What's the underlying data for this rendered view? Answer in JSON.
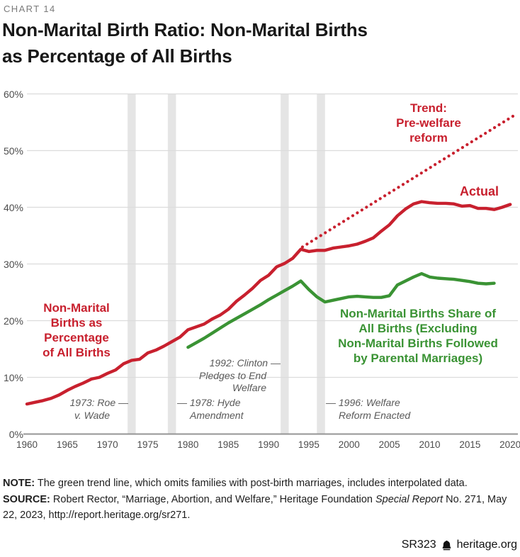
{
  "chart_label": "CHART 14",
  "title": {
    "lines": [
      "Non-Marital Birth Ratio: Non-Marital Births",
      "as Percentage of All Births"
    ]
  },
  "colors": {
    "red": "#C8202E",
    "green": "#3A9334",
    "grid": "#DCDCDC",
    "axis": "#949494",
    "band": "#E5E5E5",
    "annotation": "#595959",
    "tick": "#4D4D4D"
  },
  "chart_data": {
    "type": "line",
    "title": "Non-Marital Birth Ratio: Non-Marital Births as Percentage of All Births",
    "xlabel": "",
    "ylabel": "",
    "x_axis": {
      "range": [
        1960,
        2021
      ],
      "tick_labels": [
        1960,
        1965,
        1970,
        1975,
        1980,
        1985,
        1990,
        1995,
        2000,
        2005,
        2010,
        2015,
        2020
      ]
    },
    "y_axis": {
      "range": [
        0,
        60
      ],
      "unit": "percent",
      "tick_labels": [
        "0%",
        "10%",
        "20%",
        "30%",
        "40%",
        "50%",
        "60%"
      ]
    },
    "grid": "horizontal-only",
    "legend_position": "inline-labels",
    "series": [
      {
        "id": "actual",
        "name": "Actual",
        "style": "solid",
        "color_key": "red",
        "points": [
          [
            1960,
            5.3
          ],
          [
            1961,
            5.6
          ],
          [
            1962,
            5.9
          ],
          [
            1963,
            6.3
          ],
          [
            1964,
            6.9
          ],
          [
            1965,
            7.7
          ],
          [
            1966,
            8.4
          ],
          [
            1967,
            9.0
          ],
          [
            1968,
            9.7
          ],
          [
            1969,
            10.0
          ],
          [
            1970,
            10.7
          ],
          [
            1971,
            11.3
          ],
          [
            1972,
            12.4
          ],
          [
            1973,
            13.0
          ],
          [
            1974,
            13.2
          ],
          [
            1975,
            14.3
          ],
          [
            1976,
            14.8
          ],
          [
            1977,
            15.5
          ],
          [
            1978,
            16.3
          ],
          [
            1979,
            17.1
          ],
          [
            1980,
            18.4
          ],
          [
            1981,
            18.9
          ],
          [
            1982,
            19.4
          ],
          [
            1983,
            20.3
          ],
          [
            1984,
            21.0
          ],
          [
            1985,
            22.0
          ],
          [
            1986,
            23.4
          ],
          [
            1987,
            24.5
          ],
          [
            1988,
            25.7
          ],
          [
            1989,
            27.1
          ],
          [
            1990,
            28.0
          ],
          [
            1991,
            29.5
          ],
          [
            1992,
            30.1
          ],
          [
            1993,
            31.0
          ],
          [
            1994,
            32.6
          ],
          [
            1995,
            32.2
          ],
          [
            1996,
            32.4
          ],
          [
            1997,
            32.4
          ],
          [
            1998,
            32.8
          ],
          [
            1999,
            33.0
          ],
          [
            2000,
            33.2
          ],
          [
            2001,
            33.5
          ],
          [
            2002,
            34.0
          ],
          [
            2003,
            34.6
          ],
          [
            2004,
            35.8
          ],
          [
            2005,
            36.9
          ],
          [
            2006,
            38.5
          ],
          [
            2007,
            39.7
          ],
          [
            2008,
            40.6
          ],
          [
            2009,
            41.0
          ],
          [
            2010,
            40.8
          ],
          [
            2011,
            40.7
          ],
          [
            2012,
            40.7
          ],
          [
            2013,
            40.6
          ],
          [
            2014,
            40.2
          ],
          [
            2015,
            40.3
          ],
          [
            2016,
            39.8
          ],
          [
            2017,
            39.8
          ],
          [
            2018,
            39.6
          ],
          [
            2019,
            40.0
          ],
          [
            2020,
            40.5
          ]
        ]
      },
      {
        "id": "adjusted",
        "name": "Non-Marital Births Share of All Births (Excluding Non-Marital Births Followed by Parental Marriages)",
        "style": "solid",
        "color_key": "green",
        "points": [
          [
            1980,
            15.3
          ],
          [
            1981,
            16.1
          ],
          [
            1982,
            16.9
          ],
          [
            1983,
            17.8
          ],
          [
            1984,
            18.7
          ],
          [
            1985,
            19.6
          ],
          [
            1986,
            20.4
          ],
          [
            1987,
            21.2
          ],
          [
            1988,
            22.0
          ],
          [
            1989,
            22.8
          ],
          [
            1990,
            23.7
          ],
          [
            1991,
            24.5
          ],
          [
            1992,
            25.3
          ],
          [
            1993,
            26.1
          ],
          [
            1994,
            27.0
          ],
          [
            1995,
            25.5
          ],
          [
            1996,
            24.2
          ],
          [
            1997,
            23.3
          ],
          [
            1998,
            23.6
          ],
          [
            1999,
            23.9
          ],
          [
            2000,
            24.2
          ],
          [
            2001,
            24.3
          ],
          [
            2002,
            24.2
          ],
          [
            2003,
            24.1
          ],
          [
            2004,
            24.1
          ],
          [
            2005,
            24.4
          ],
          [
            2006,
            26.3
          ],
          [
            2007,
            27.0
          ],
          [
            2008,
            27.7
          ],
          [
            2009,
            28.3
          ],
          [
            2010,
            27.7
          ],
          [
            2011,
            27.5
          ],
          [
            2012,
            27.4
          ],
          [
            2013,
            27.3
          ],
          [
            2014,
            27.1
          ],
          [
            2015,
            26.9
          ],
          [
            2016,
            26.6
          ],
          [
            2017,
            26.5
          ],
          [
            2018,
            26.6
          ]
        ]
      },
      {
        "id": "trend",
        "name": "Trend: Pre-welfare reform",
        "style": "dotted",
        "color_key": "red",
        "points": [
          [
            1994.2,
            33.0
          ],
          [
            2020.6,
            56.3
          ]
        ]
      }
    ],
    "labels": {
      "actual": "Actual",
      "trend_lines": [
        "Trend:",
        "Pre-welfare",
        "reform"
      ],
      "red_series_lines": [
        "Non-Marital",
        "Births as",
        "Percentage",
        "of All Births"
      ],
      "green_series_lines": [
        "Non-Marital Births Share of",
        "All Births (Excluding",
        "Non-Marital Births Followed",
        "by Parental Marriages)"
      ]
    },
    "events": [
      {
        "year": 1973,
        "lines": [
          "1973: Roe —",
          "v. Wade"
        ]
      },
      {
        "year": 1978,
        "lines": [
          "— 1978: Hyde",
          "Amendment"
        ]
      },
      {
        "year": 1992,
        "lines": [
          "1992: Clinton —",
          "Pledges to End",
          "Welfare"
        ]
      },
      {
        "year": 1996.5,
        "lines": [
          "— 1996: Welfare",
          "Reform Enacted"
        ]
      }
    ]
  },
  "note": {
    "label": "NOTE:",
    "text": " The green trend line, which omits families with post-birth marriages, includes interpolated data."
  },
  "source": {
    "label": "SOURCE:",
    "text_before_italic": " Robert Rector, “Marriage, Abortion, and Welfare,” Heritage Foundation ",
    "italic": "Special Report",
    "text_after_italic": " No. 271, May 22, 2023, http://report.heritage.org/sr271."
  },
  "footer": {
    "report_id": "SR323",
    "site": "heritage.org"
  }
}
